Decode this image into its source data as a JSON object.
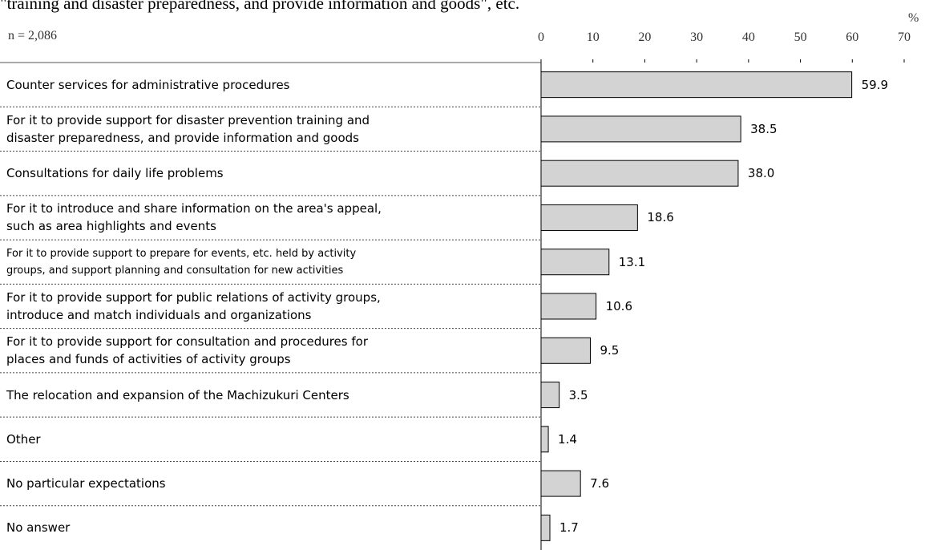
{
  "chart_data": {
    "type": "barh",
    "title": "\"training and disaster preparedness, and provide information and goods\", etc.",
    "annotation": "n = 2,086",
    "unit": "%",
    "categories": [
      "Counter services for administrative procedures",
      "For it to provide support for disaster prevention training and\ndisaster preparedness, and provide information and goods",
      "Consultations for daily life problems",
      "For it to introduce and share information on the area's appeal,\nsuch as area highlights and events",
      "For it to provide support to prepare for events, etc. held by activity\ngroups, and support planning and consultation for new activities",
      "For it to provide support for public relations of activity groups,\nintroduce and match individuals and organizations",
      "For it to provide support for consultation and procedures for\nplaces and funds of activities of activity groups",
      "The relocation and expansion of the Machizukuri Centers",
      "Other",
      "No particular expectations",
      "No answer"
    ],
    "values": [
      59.9,
      38.5,
      38.0,
      18.6,
      13.1,
      10.6,
      9.5,
      3.5,
      1.4,
      7.6,
      1.7
    ],
    "value_labels": [
      "59.9",
      "38.5",
      "38.0",
      "18.6",
      "13.1",
      "10.6",
      "9.5",
      "3.5",
      "1.4",
      "7.6",
      "1.7"
    ],
    "color": "#d3d3d3",
    "xlim": [
      0,
      70
    ],
    "xticks": [
      0,
      10,
      20,
      30,
      40,
      50,
      60,
      70
    ]
  }
}
